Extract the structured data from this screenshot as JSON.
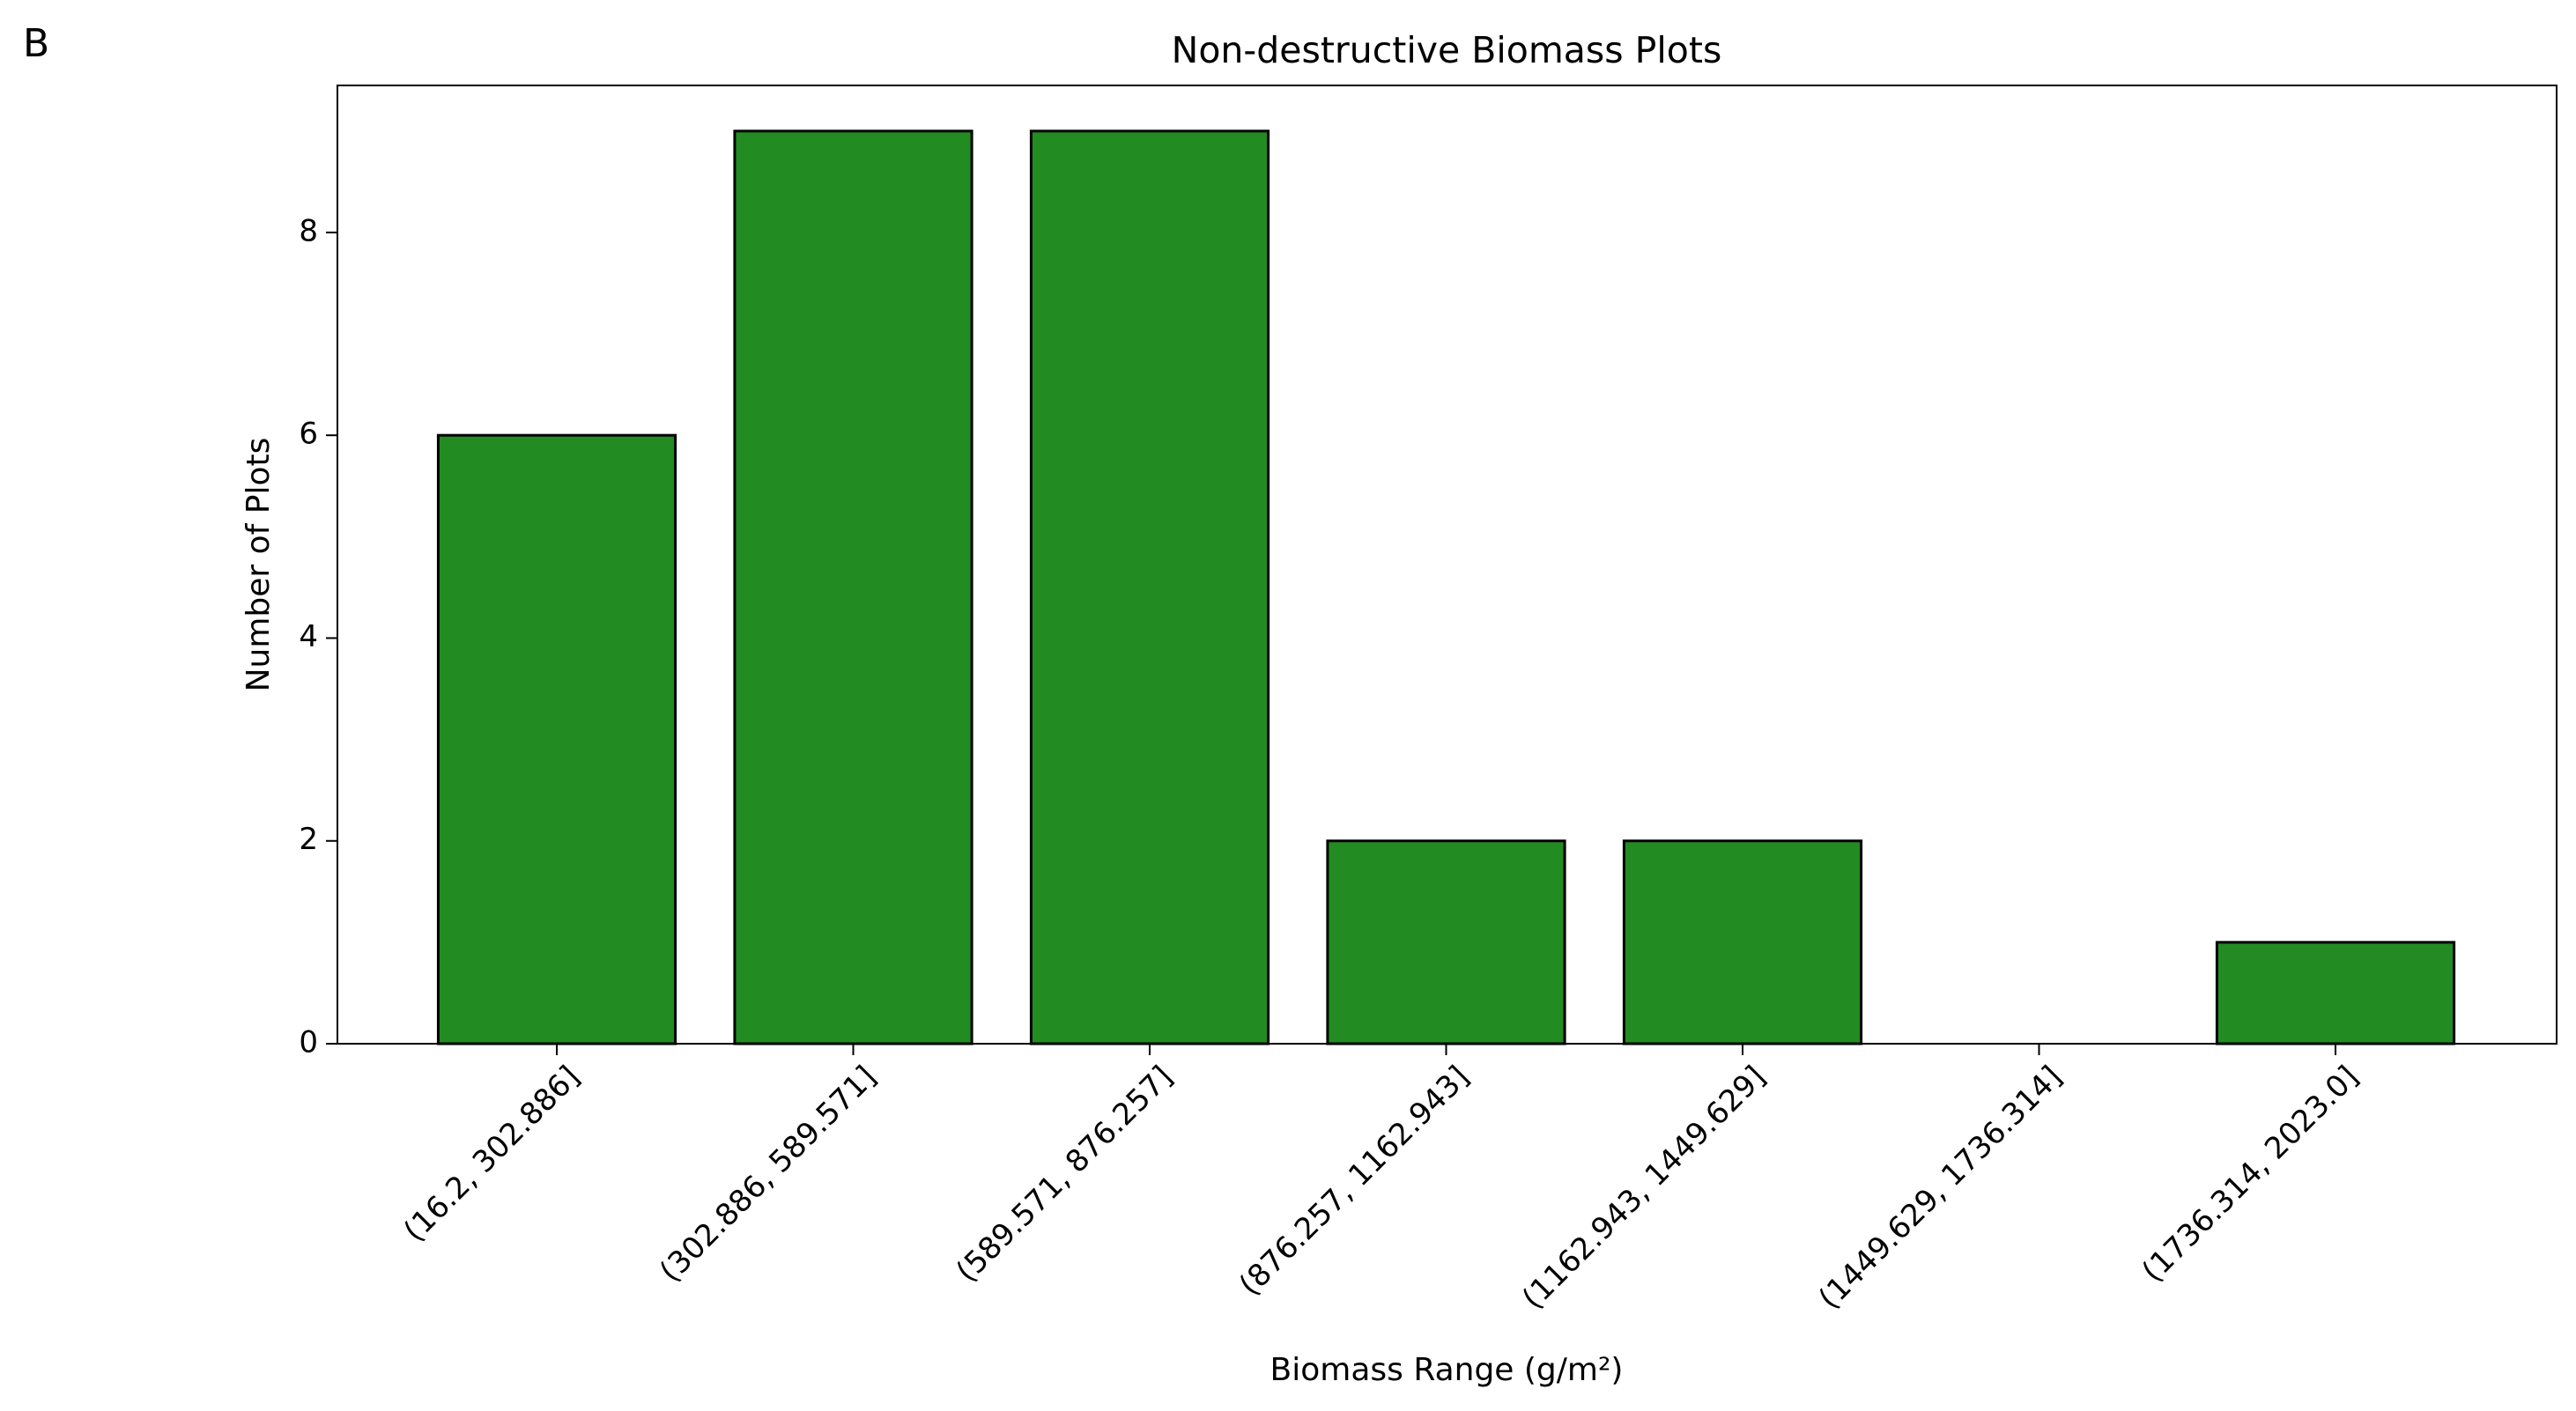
{
  "panel_label": "B",
  "chart_data": {
    "type": "bar",
    "title": "Non-destructive Biomass Plots",
    "x_label": "Biomass Range (g/m²)",
    "y_label": "Number of Plots",
    "categories": [
      "(16.2, 302.886]",
      "(302.886, 589.571]",
      "(589.571, 876.257]",
      "(876.257, 1162.943]",
      "(1162.943, 1449.629]",
      "(1449.629, 1736.314]",
      "(1736.314, 2023.0]"
    ],
    "values": [
      6,
      9,
      9,
      2,
      2,
      0,
      1
    ],
    "color": "#228b22",
    "edgecolor": "#000000",
    "ylim": [
      0,
      9.45
    ],
    "yticks": [
      0,
      2,
      4,
      6,
      8
    ],
    "grid": false
  }
}
